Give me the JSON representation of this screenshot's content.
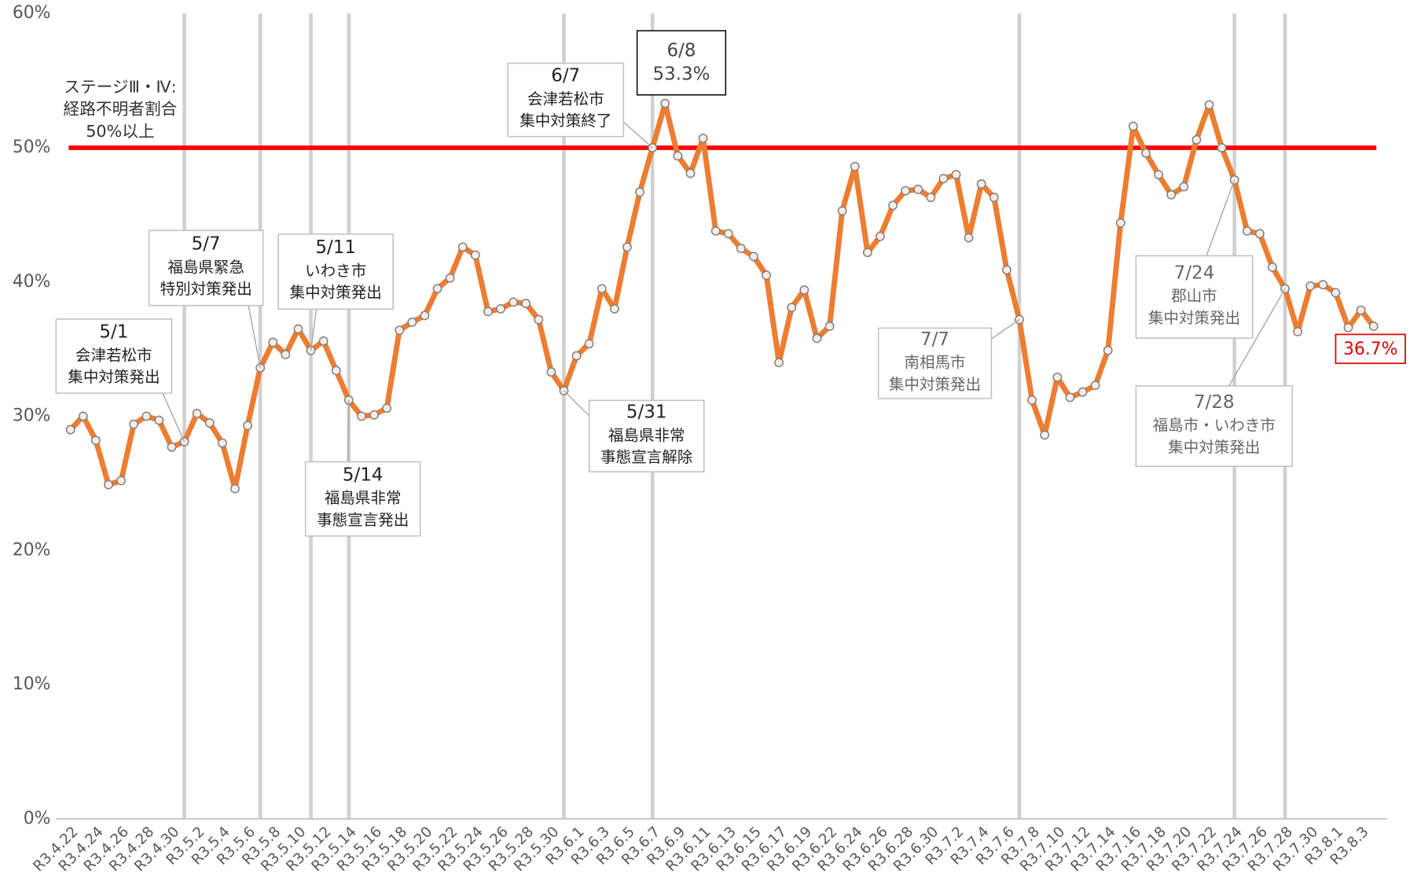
{
  "chart_data": {
    "type": "line",
    "categories": [
      "R3.4.22",
      null,
      "R3.4.24",
      null,
      "R3.4.26",
      null,
      "R3.4.28",
      null,
      "R3.4.30",
      null,
      "R3.5.2",
      null,
      "R3.5.4",
      null,
      "R3.5.6",
      null,
      "R3.5.8",
      null,
      "R3.5.10",
      null,
      "R3.5.12",
      null,
      "R3.5.14",
      null,
      "R3.5.16",
      null,
      "R3.5.18",
      null,
      "R3.5.20",
      null,
      "R3.5.22",
      null,
      "R3.5.24",
      null,
      "R3.5.26",
      null,
      "R3.5.28",
      null,
      "R3.5.30",
      null,
      "R3.6.1",
      null,
      "R3.6.3",
      null,
      "R3.6.5",
      null,
      "R3.6.7",
      null,
      "R3.6.9",
      null,
      "R3.6.11",
      null,
      "R3.6.13",
      null,
      "R3.6.15",
      null,
      "R3.6.17",
      null,
      "R3.6.19",
      null,
      "R3.6.22",
      null,
      "R3.6.24",
      null,
      "R3.6.26",
      null,
      "R3.6.28",
      null,
      "R3.6.30",
      null,
      "R3.7.2",
      null,
      "R3.7.4",
      null,
      "R3.7.6",
      null,
      "R3.7.8",
      null,
      "R3.7.10",
      null,
      "R3.7.12",
      null,
      "R3.7.14",
      null,
      "R3.7.16",
      null,
      "R3.7.18",
      null,
      "R3.7.20",
      null,
      "R3.7.22",
      null,
      "R3.7.24",
      null,
      "R3.7.26",
      null,
      "R3.7.28",
      null,
      "R3.7.30",
      null,
      "R3.8.1",
      null,
      "R3.8.3",
      null
    ],
    "series": [
      {
        "name": "経路不明者割合",
        "color": "#ed7d31",
        "values": [
          29.0,
          30.0,
          28.2,
          24.9,
          25.2,
          29.4,
          30.0,
          29.7,
          27.7,
          28.1,
          30.2,
          29.5,
          28.0,
          24.6,
          29.3,
          33.6,
          35.5,
          34.6,
          36.5,
          34.9,
          35.6,
          33.4,
          31.2,
          30.0,
          30.1,
          30.6,
          36.4,
          37.0,
          37.5,
          39.5,
          40.3,
          42.6,
          42.0,
          37.8,
          38.0,
          38.5,
          38.4,
          37.2,
          33.3,
          31.9,
          34.5,
          35.4,
          39.5,
          38.0,
          42.6,
          46.7,
          50.0,
          53.3,
          49.4,
          48.1,
          50.7,
          43.8,
          43.6,
          42.5,
          41.9,
          40.5,
          34.0,
          38.1,
          39.4,
          35.8,
          36.7,
          45.3,
          48.6,
          42.2,
          43.4,
          45.7,
          46.8,
          46.9,
          46.3,
          47.7,
          48.0,
          43.3,
          47.3,
          46.3,
          40.9,
          37.2,
          31.2,
          28.6,
          32.9,
          31.4,
          31.8,
          32.3,
          34.9,
          44.4,
          51.6,
          49.6,
          48.0,
          46.5,
          47.1,
          50.6,
          53.2,
          50.0,
          47.6,
          43.8,
          43.6,
          41.1,
          39.5,
          36.3,
          39.7,
          39.8,
          39.2,
          36.6,
          37.9,
          36.7
        ],
        "value_labels": [
          null,
          null,
          null,
          null,
          null,
          null,
          null,
          null,
          null,
          null,
          null,
          null,
          null,
          null,
          null,
          null,
          null,
          null,
          null,
          null,
          null,
          null,
          null,
          null,
          null,
          null,
          null,
          null,
          null,
          null,
          null,
          null,
          null,
          null,
          null,
          null,
          null,
          null,
          null,
          null,
          null,
          null,
          null,
          null,
          null,
          null,
          null,
          null,
          null,
          null,
          null,
          null,
          null,
          null,
          null,
          null,
          null,
          null,
          null,
          null,
          null,
          null,
          null,
          null,
          null,
          null,
          null,
          null,
          null,
          null,
          null,
          null,
          null,
          null,
          null,
          null,
          null,
          null,
          null,
          null,
          null,
          null,
          null,
          null,
          null,
          null,
          null,
          null,
          null,
          null,
          null,
          null,
          null,
          null,
          null,
          null,
          null,
          null,
          null,
          null,
          null,
          null,
          null,
          "36.7%"
        ],
        "value_label_color": "#e00000"
      }
    ],
    "ylim": [
      0,
      60
    ],
    "yticks": [
      {
        "value": 0,
        "label": "0%"
      },
      {
        "value": 10,
        "label": "10%"
      },
      {
        "value": 20,
        "label": "20%"
      },
      {
        "value": 30,
        "label": "30%"
      },
      {
        "value": 40,
        "label": "40%"
      },
      {
        "value": 50,
        "label": "50%"
      },
      {
        "value": 60,
        "label": "60%"
      }
    ],
    "grid": false,
    "reference_line": {
      "value": 50,
      "color": "#ff0000",
      "label": [
        "ステージⅢ・Ⅳ:",
        "経路不明者割合",
        "50%以上"
      ]
    },
    "annotations": [
      {
        "at": 9,
        "lines": [
          "5/1",
          "会津若松市",
          "集中対策発出"
        ],
        "color": "#222222"
      },
      {
        "at": 15,
        "lines": [
          "5/7",
          "福島県緊急",
          "特別対策発出"
        ],
        "color": "#222222"
      },
      {
        "at": 19,
        "lines": [
          "5/11",
          "いわき市",
          "集中対策発出"
        ],
        "color": "#222222"
      },
      {
        "at": 22,
        "lines": [
          "5/14",
          "福島県非常",
          "事態宣言発出"
        ],
        "color": "#222222"
      },
      {
        "at": 39,
        "lines": [
          "5/31",
          "福島県非常",
          "事態宣言解除"
        ],
        "color": "#222222"
      },
      {
        "at": 46,
        "lines": [
          "6/7",
          "会津若松市",
          "集中対策終了"
        ],
        "color": "#222222"
      },
      {
        "at": 47,
        "lines": [
          "6/8",
          "53.3%"
        ],
        "color": "#444444"
      },
      {
        "at": 75,
        "lines": [
          "7/7",
          "南相馬市",
          "集中対策発出"
        ],
        "color": "#666666"
      },
      {
        "at": 92,
        "lines": [
          "7/24",
          "郡山市",
          "集中対策発出"
        ],
        "color": "#666666"
      },
      {
        "at": 96,
        "lines": [
          "7/28",
          "福島市・いわき市",
          "集中対策発出"
        ],
        "color": "#666666"
      }
    ]
  }
}
